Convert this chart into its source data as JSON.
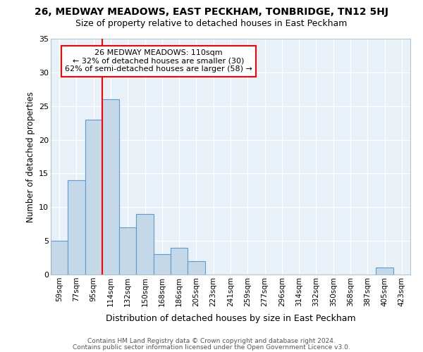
{
  "title1": "26, MEDWAY MEADOWS, EAST PECKHAM, TONBRIDGE, TN12 5HJ",
  "title2": "Size of property relative to detached houses in East Peckham",
  "xlabel": "Distribution of detached houses by size in East Peckham",
  "ylabel": "Number of detached properties",
  "categories": [
    "59sqm",
    "77sqm",
    "95sqm",
    "114sqm",
    "132sqm",
    "150sqm",
    "168sqm",
    "186sqm",
    "205sqm",
    "223sqm",
    "241sqm",
    "259sqm",
    "277sqm",
    "296sqm",
    "314sqm",
    "332sqm",
    "350sqm",
    "368sqm",
    "387sqm",
    "405sqm",
    "423sqm"
  ],
  "values": [
    5,
    14,
    23,
    26,
    7,
    9,
    3,
    4,
    2,
    0,
    0,
    0,
    0,
    0,
    0,
    0,
    0,
    0,
    0,
    1,
    0
  ],
  "bar_color": "#c5d8e8",
  "bar_edge_color": "#5b9bd5",
  "bar_edge_width": 0.8,
  "vline_x_index": 3,
  "vline_color": "red",
  "annotation_line1": "26 MEDWAY MEADOWS: 110sqm",
  "annotation_line2": "← 32% of detached houses are smaller (30)",
  "annotation_line3": "62% of semi-detached houses are larger (58) →",
  "annotation_box_color": "white",
  "annotation_box_edge": "red",
  "ylim": [
    0,
    35
  ],
  "yticks": [
    0,
    5,
    10,
    15,
    20,
    25,
    30,
    35
  ],
  "background_color": "#e8f0f8",
  "grid_color": "white",
  "footer1": "Contains HM Land Registry data © Crown copyright and database right 2024.",
  "footer2": "Contains public sector information licensed under the Open Government Licence v3.0."
}
